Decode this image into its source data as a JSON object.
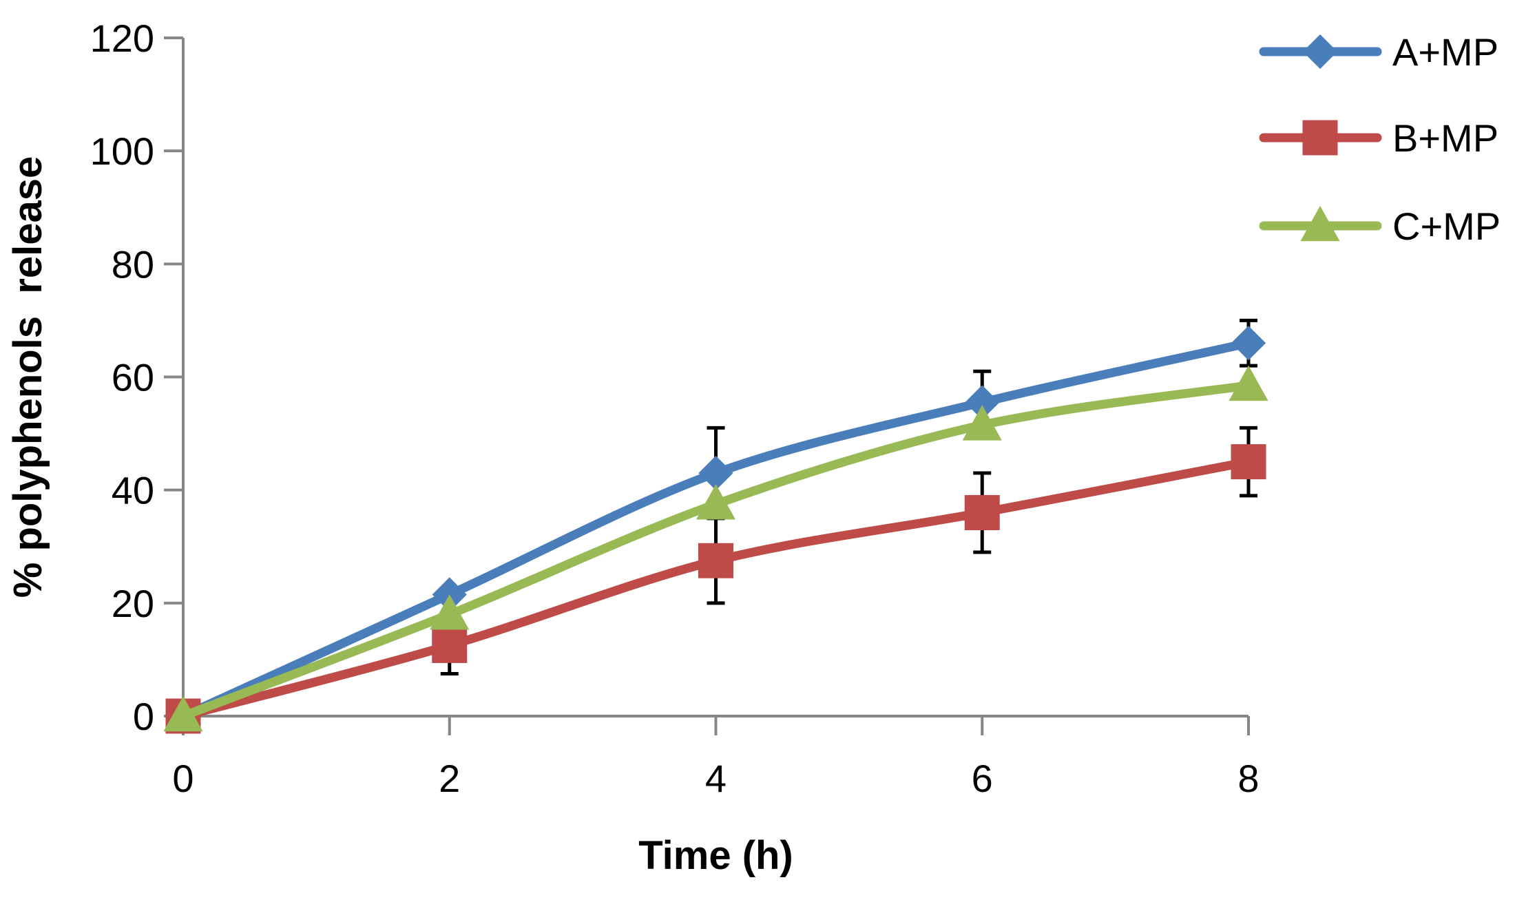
{
  "chart_data": {
    "type": "line",
    "title": "",
    "xlabel": "Time (h)",
    "ylabel": "% polyphenols  release",
    "x": [
      0,
      2,
      4,
      6,
      8
    ],
    "x_ticks": [
      "0",
      "2",
      "4",
      "6",
      "8"
    ],
    "y_ticks": [
      "0",
      "20",
      "40",
      "60",
      "80",
      "100",
      "120"
    ],
    "xlim": [
      0,
      8
    ],
    "ylim": [
      0,
      120
    ],
    "grid": false,
    "legend_position": "top-right",
    "series": [
      {
        "name": "A+MP",
        "values": [
          0,
          21.5,
          43,
          55.5,
          66
        ],
        "errors": [
          0,
          0,
          8,
          5.5,
          4
        ],
        "color": "#4A7EBB",
        "marker": "diamond"
      },
      {
        "name": "B+MP",
        "values": [
          0,
          12.5,
          27.5,
          36,
          45
        ],
        "errors": [
          0,
          5,
          7.5,
          7,
          6
        ],
        "color": "#BE4B48",
        "marker": "square"
      },
      {
        "name": "C+MP",
        "values": [
          0,
          18,
          37.5,
          51.5,
          58.5
        ],
        "errors": [
          0,
          0,
          0,
          0,
          0
        ],
        "color": "#98B954",
        "marker": "triangle"
      }
    ]
  }
}
